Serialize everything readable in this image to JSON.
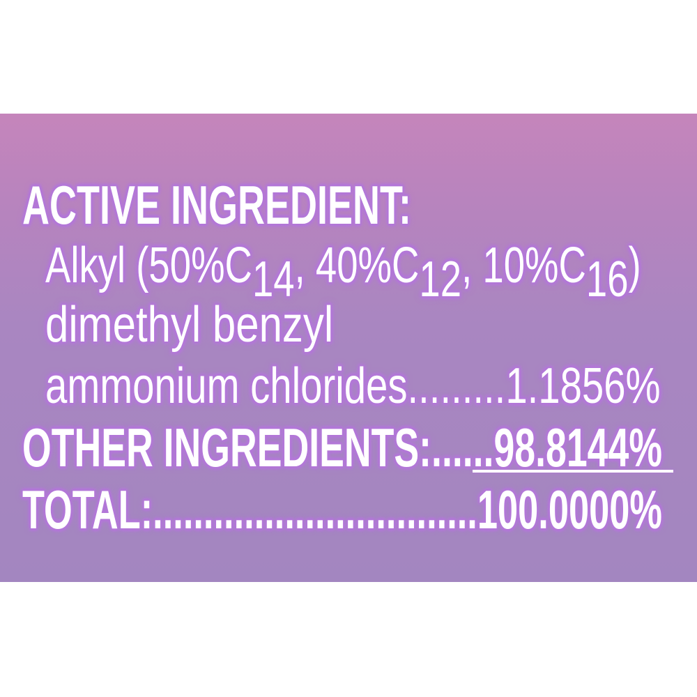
{
  "colors": {
    "panel_top": "#c585bb",
    "panel_bottom": "#a386c0",
    "glow": "#b378d8",
    "text": "#ffffff"
  },
  "label": {
    "active_heading": "ACTIVE INGREDIENT:",
    "alkyl": {
      "prefix": "Alkyl (50%C",
      "s1": "14",
      "mid1": ", 40%C",
      "s2": "12",
      "mid2": ", 10%C",
      "s3": "16",
      "suffix": ")"
    },
    "line3": "dimethyl benzyl",
    "line4": "ammonium chlorides.........1.1856%",
    "other_label": "OTHER INGREDIENTS:......",
    "other_value": "98.8144%",
    "total_label": "TOTAL:................................",
    "total_value": "100.0000%"
  }
}
